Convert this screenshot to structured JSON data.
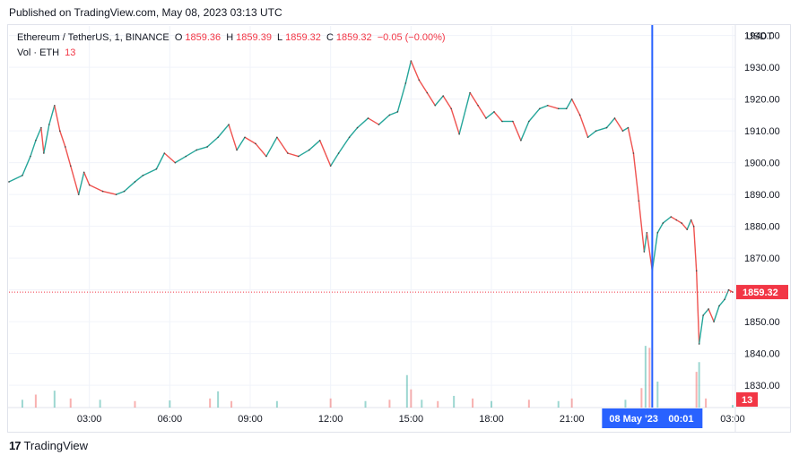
{
  "header": {
    "published": "Published on TradingView.com, May 08, 2023 03:13 UTC"
  },
  "legend": {
    "symbol": "Ethereum / TetherUS, 1, BINANCE",
    "open_label": "O",
    "open": "1859.36",
    "high_label": "H",
    "high": "1859.39",
    "low_label": "L",
    "low": "1859.32",
    "close_label": "C",
    "close": "1859.32",
    "change": "−0.05 (−0.00%)",
    "volume_label": "Vol · ETH",
    "volume": "13"
  },
  "footer": {
    "brand": "TradingView",
    "brand_mark": "17"
  },
  "colors": {
    "up": "#26a69a",
    "down": "#ef5350",
    "crosshair": "#2962ff",
    "price_tag": "#f23645",
    "grid": "#f0f3fa",
    "text": "#131722"
  },
  "chart_data": {
    "type": "line",
    "title": "Ethereum / TetherUS, 1, BINANCE",
    "y_axis_label": "USDT",
    "y_ticks": [
      1940,
      1930,
      1920,
      1910,
      1900,
      1890,
      1880,
      1870,
      1860,
      1850,
      1840,
      1830
    ],
    "ylim": [
      1823,
      1943
    ],
    "x_ticks": [
      "03:00",
      "06:00",
      "09:00",
      "12:00",
      "15:00",
      "18:00",
      "21:00",
      "03:00"
    ],
    "xlim_hours": [
      0,
      27.1
    ],
    "x_tick_hours": [
      3,
      6,
      9,
      12,
      15,
      18,
      21,
      27
    ],
    "crosshair_hour": 24.0,
    "crosshair_label": "08 May '23",
    "crosshair_time": "00:01",
    "last_price": "1859.32",
    "last_price_value": 1859.32,
    "last_volume": "13",
    "series": [
      {
        "points": [
          [
            0.0,
            1894
          ],
          [
            0.5,
            1896
          ],
          [
            0.8,
            1902
          ],
          [
            1.0,
            1907
          ],
          [
            1.2,
            1911
          ],
          [
            1.3,
            1903
          ],
          [
            1.5,
            1912
          ],
          [
            1.7,
            1918
          ],
          [
            1.9,
            1910
          ],
          [
            2.1,
            1905
          ],
          [
            2.3,
            1899
          ],
          [
            2.6,
            1890
          ],
          [
            2.8,
            1897
          ],
          [
            3.0,
            1893
          ],
          [
            3.5,
            1891
          ],
          [
            4.0,
            1890
          ],
          [
            4.3,
            1891
          ],
          [
            4.7,
            1894
          ],
          [
            5.0,
            1896
          ],
          [
            5.5,
            1898
          ],
          [
            5.8,
            1903
          ],
          [
            6.2,
            1900
          ],
          [
            6.6,
            1902
          ],
          [
            7.0,
            1904
          ],
          [
            7.4,
            1905
          ],
          [
            7.8,
            1908
          ],
          [
            8.2,
            1912
          ],
          [
            8.5,
            1904
          ],
          [
            8.8,
            1908
          ],
          [
            9.2,
            1906
          ],
          [
            9.6,
            1902
          ],
          [
            10.0,
            1908
          ],
          [
            10.4,
            1903
          ],
          [
            10.8,
            1902
          ],
          [
            11.2,
            1904
          ],
          [
            11.6,
            1907
          ],
          [
            12.0,
            1899
          ],
          [
            12.3,
            1903
          ],
          [
            12.7,
            1908
          ],
          [
            13.0,
            1911
          ],
          [
            13.4,
            1914
          ],
          [
            13.8,
            1912
          ],
          [
            14.2,
            1915
          ],
          [
            14.5,
            1916
          ],
          [
            14.8,
            1925
          ],
          [
            15.0,
            1932
          ],
          [
            15.3,
            1926
          ],
          [
            15.6,
            1922
          ],
          [
            15.9,
            1918
          ],
          [
            16.2,
            1921
          ],
          [
            16.5,
            1917
          ],
          [
            16.8,
            1909
          ],
          [
            17.2,
            1922
          ],
          [
            17.5,
            1918
          ],
          [
            17.8,
            1914
          ],
          [
            18.1,
            1916
          ],
          [
            18.4,
            1913
          ],
          [
            18.8,
            1913
          ],
          [
            19.1,
            1907
          ],
          [
            19.4,
            1913
          ],
          [
            19.8,
            1917
          ],
          [
            20.1,
            1918
          ],
          [
            20.5,
            1917
          ],
          [
            20.8,
            1917
          ],
          [
            21.0,
            1920
          ],
          [
            21.3,
            1915
          ],
          [
            21.6,
            1908
          ],
          [
            21.9,
            1910
          ],
          [
            22.3,
            1911
          ],
          [
            22.6,
            1914
          ],
          [
            22.9,
            1910
          ],
          [
            23.1,
            1911
          ],
          [
            23.3,
            1903
          ],
          [
            23.5,
            1888
          ],
          [
            23.7,
            1872
          ],
          [
            23.8,
            1878
          ],
          [
            24.0,
            1866
          ],
          [
            24.2,
            1878
          ],
          [
            24.4,
            1881
          ],
          [
            24.7,
            1883
          ],
          [
            24.9,
            1882
          ],
          [
            25.1,
            1881
          ],
          [
            25.3,
            1879
          ],
          [
            25.45,
            1882
          ],
          [
            25.55,
            1880
          ],
          [
            25.65,
            1866
          ],
          [
            25.75,
            1843
          ],
          [
            25.9,
            1852
          ],
          [
            26.1,
            1854
          ],
          [
            26.3,
            1850
          ],
          [
            26.5,
            1855
          ],
          [
            26.7,
            1857
          ],
          [
            26.85,
            1860
          ],
          [
            27.0,
            1859.32
          ]
        ]
      }
    ],
    "volume": {
      "ylim": [
        0,
        120
      ],
      "bars": [
        [
          0.5,
          12
        ],
        [
          1.0,
          20
        ],
        [
          1.7,
          26
        ],
        [
          2.3,
          14
        ],
        [
          3.4,
          12
        ],
        [
          4.7,
          10
        ],
        [
          6.0,
          11
        ],
        [
          7.5,
          14
        ],
        [
          7.8,
          25
        ],
        [
          8.3,
          10
        ],
        [
          10.0,
          10
        ],
        [
          12.0,
          14
        ],
        [
          13.3,
          10
        ],
        [
          14.2,
          12
        ],
        [
          14.85,
          50
        ],
        [
          15.0,
          28
        ],
        [
          15.4,
          12
        ],
        [
          16.0,
          10
        ],
        [
          16.6,
          18
        ],
        [
          17.3,
          14
        ],
        [
          18.0,
          10
        ],
        [
          19.4,
          12
        ],
        [
          20.5,
          10
        ],
        [
          21.0,
          14
        ],
        [
          23.0,
          12
        ],
        [
          23.6,
          30
        ],
        [
          23.75,
          95
        ],
        [
          23.9,
          92
        ],
        [
          24.2,
          40
        ],
        [
          25.65,
          55
        ],
        [
          25.75,
          70
        ],
        [
          26.0,
          14
        ],
        [
          27.0,
          4
        ]
      ]
    }
  }
}
